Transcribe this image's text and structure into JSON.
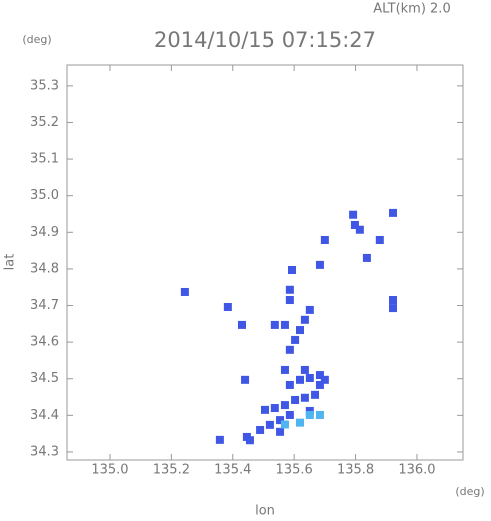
{
  "chart_data": {
    "type": "scatter",
    "title": "2014/10/15 07:15:27",
    "annotation": "ALT(km) 2.0",
    "y_unit": "(deg)",
    "x_unit": "(deg)",
    "x_label": "lon",
    "y_label": "lat",
    "xlim": [
      134.86,
      136.15
    ],
    "ylim": [
      34.278,
      35.357
    ],
    "xticks": [
      {
        "value": 135.0,
        "label": "135.0"
      },
      135.2,
      135.4,
      135.6,
      135.8,
      {
        "value": 136.0,
        "label": "136.0"
      }
    ],
    "yticks": [
      34.3,
      34.4,
      34.5,
      34.6,
      34.7,
      34.8,
      34.9,
      {
        "value": 35.0,
        "label": "35.0"
      },
      35.1,
      35.2,
      35.3
    ],
    "series": [
      {
        "color": "#4057e6",
        "x": [
          135.244,
          135.358,
          135.446,
          135.489,
          135.521,
          135.554,
          135.586,
          135.505,
          135.537,
          135.57,
          135.603,
          135.635,
          135.668,
          135.651,
          135.586,
          135.619,
          135.651,
          135.684,
          135.57,
          135.635,
          135.684,
          135.7,
          135.586,
          135.603,
          135.619,
          135.57,
          135.537,
          135.635,
          135.651,
          135.44,
          135.43,
          135.384,
          135.586,
          135.586,
          135.593,
          135.684,
          135.7,
          135.792,
          135.798,
          135.814,
          135.879,
          135.837,
          135.922,
          135.922,
          135.922,
          135.456,
          135.554
        ],
        "y": [
          34.737,
          34.333,
          34.341,
          34.36,
          34.374,
          34.387,
          34.401,
          34.415,
          34.42,
          34.428,
          34.442,
          34.448,
          34.456,
          34.412,
          34.483,
          34.497,
          34.502,
          34.51,
          34.524,
          34.524,
          34.483,
          34.497,
          34.579,
          34.606,
          34.633,
          34.647,
          34.647,
          34.661,
          34.688,
          34.497,
          34.647,
          34.696,
          34.715,
          34.743,
          34.797,
          34.811,
          34.879,
          34.948,
          34.92,
          34.907,
          34.879,
          34.83,
          34.715,
          34.693,
          34.953,
          34.332,
          34.355
        ]
      },
      {
        "color": "#4fb4ef",
        "x": [
          135.619,
          135.684,
          135.651,
          135.57
        ],
        "y": [
          34.38,
          34.401,
          34.401,
          34.375
        ]
      }
    ]
  }
}
